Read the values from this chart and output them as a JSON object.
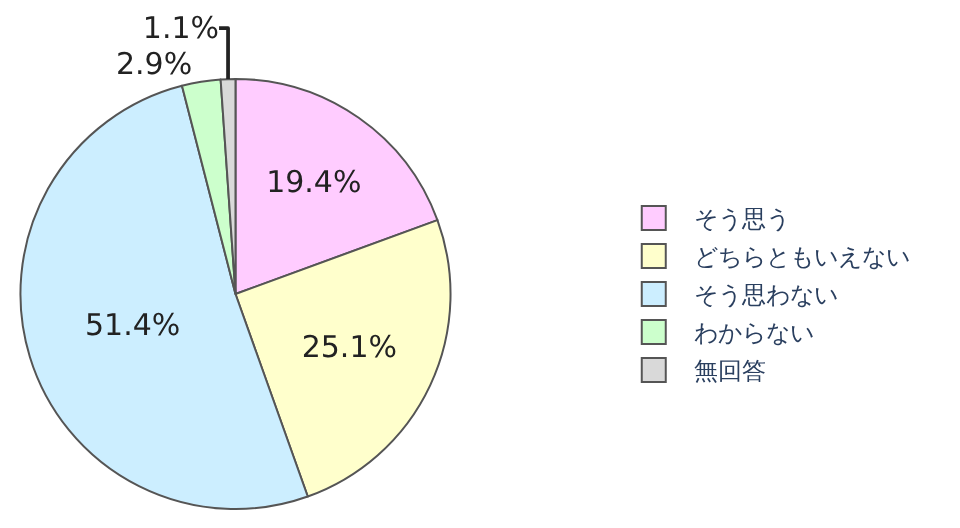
{
  "chart_data": {
    "type": "pie",
    "categories": [
      "そう思う",
      "どちらともいえない",
      "そう思わない",
      "わからない",
      "無回答"
    ],
    "values": [
      19.4,
      25.1,
      51.4,
      2.9,
      1.1
    ],
    "colors": [
      "#ffccff",
      "#ffffcc",
      "#cceeff",
      "#ccffcc",
      "#d9d9d9"
    ],
    "value_labels": [
      "19.4%",
      "25.1%",
      "51.4%",
      "2.9%",
      "1.1%"
    ],
    "legend": "right"
  }
}
